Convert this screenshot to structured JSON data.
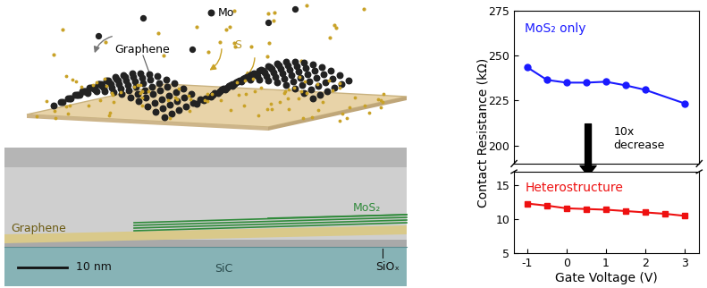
{
  "chart_data": [
    {
      "type": "line",
      "y_label": "Contact Resistance (kΩ)",
      "x": [
        -1,
        -0.5,
        0,
        0.5,
        1,
        1.5,
        2,
        3
      ],
      "series": [
        {
          "name": "MoS₂ only",
          "color": "#1a1aff",
          "marker": "circle",
          "line_style": "solid",
          "values": [
            243.5,
            236.5,
            235,
            235,
            235.5,
            233.5,
            231,
            223.5
          ]
        }
      ],
      "xlim": [
        -1.34,
        3.38
      ],
      "ylim": [
        190,
        275
      ],
      "yticks": [
        200,
        225,
        250,
        275
      ],
      "annotation": "10x decrease",
      "tick_labels": "y"
    },
    {
      "type": "line",
      "x_label": "Gate Voltage (V)",
      "x": [
        -1,
        -0.5,
        0,
        0.5,
        1,
        1.5,
        2,
        2.5,
        3
      ],
      "series": [
        {
          "name": "Heterostructure",
          "color": "#ee1111",
          "marker": "square",
          "line_style": "solid",
          "values": [
            12.3,
            12.0,
            11.6,
            11.5,
            11.4,
            11.2,
            11.0,
            10.8,
            10.5
          ]
        }
      ],
      "xlim": [
        -1.34,
        3.38
      ],
      "ylim": [
        5,
        17
      ],
      "yticks": [
        5,
        10,
        15
      ],
      "xticks": [
        -1,
        0,
        1,
        2,
        3
      ]
    }
  ],
  "schematic": {
    "atom_labels": [
      "Mo",
      "S"
    ],
    "layer_label": "Graphene"
  },
  "micrograph": {
    "layers": [
      "Graphene",
      "MoS₂",
      "SiC",
      "SiOₓ"
    ],
    "scale_bar": "10 nm"
  }
}
